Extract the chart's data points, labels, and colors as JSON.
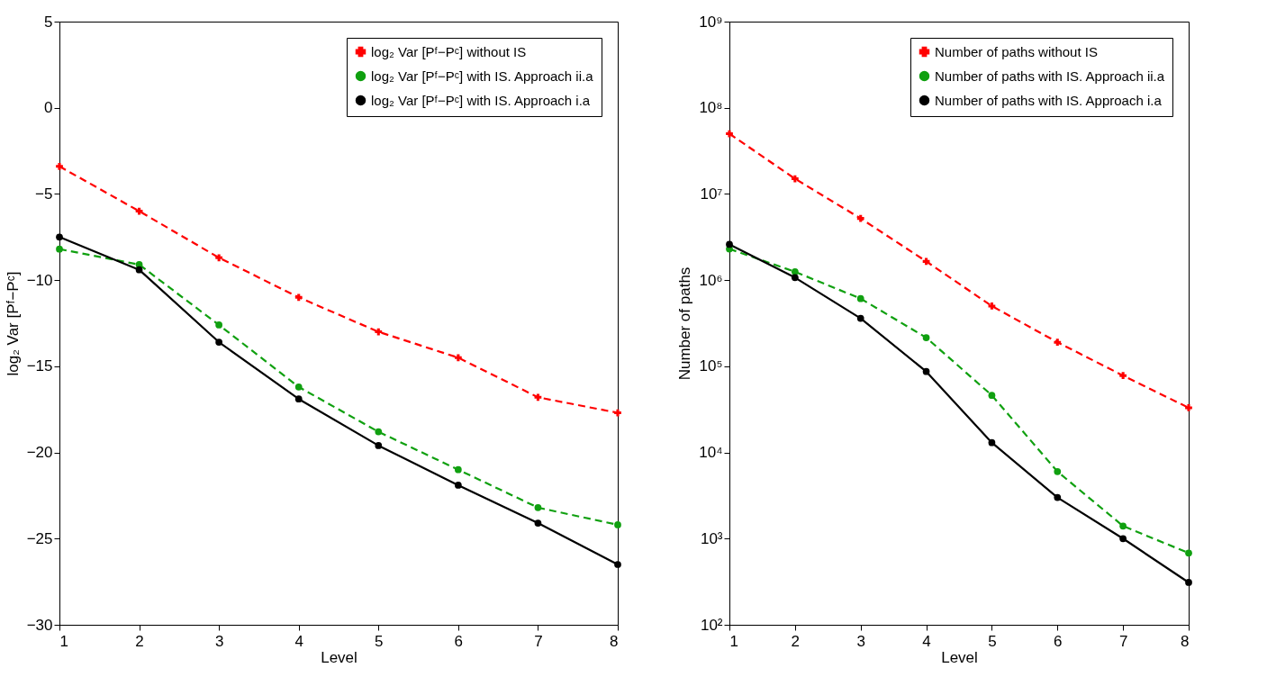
{
  "chart_data": [
    {
      "type": "line",
      "xlabel": "Level",
      "ylabel": "log₂ Var [Pᶠ−Pᶜ]",
      "x": [
        1,
        2,
        3,
        4,
        5,
        6,
        7,
        8
      ],
      "xlim": [
        1,
        8
      ],
      "xticks": [
        1,
        2,
        3,
        4,
        5,
        6,
        7,
        8
      ],
      "ylim": [
        -30,
        5
      ],
      "yticks": [
        -30,
        -25,
        -20,
        -15,
        -10,
        -5,
        0,
        5
      ],
      "legend": "top right",
      "series": [
        {
          "name": "log₂ Var [Pᶠ−Pᶜ] without IS",
          "color": "#ff0000",
          "marker": "cross",
          "line_style": "dashed",
          "values": [
            -3.4,
            -6.0,
            -8.7,
            -11.0,
            -13.0,
            -14.5,
            -16.8,
            -17.7
          ]
        },
        {
          "name": "log₂ Var [Pᶠ−Pᶜ] with IS. Approach ii.a",
          "color": "#10a010",
          "marker": "circle",
          "line_style": "dashed",
          "values": [
            -8.2,
            -9.1,
            -12.6,
            -16.2,
            -18.8,
            -21.0,
            -23.2,
            -24.2
          ]
        },
        {
          "name": "log₂ Var [Pᶠ−Pᶜ] with IS. Approach i.a",
          "color": "#000000",
          "marker": "circle",
          "line_style": "solid",
          "values": [
            -7.5,
            -9.4,
            -13.6,
            -16.9,
            -19.6,
            -21.9,
            -24.1,
            -26.5
          ]
        }
      ]
    },
    {
      "type": "line",
      "xlabel": "Level",
      "ylabel": "Number of paths",
      "log": true,
      "x": [
        1,
        2,
        3,
        4,
        5,
        6,
        7,
        8
      ],
      "xlim": [
        1,
        8
      ],
      "xticks": [
        1,
        2,
        3,
        4,
        5,
        6,
        7,
        8
      ],
      "ylim": [
        100,
        1000000000
      ],
      "yticks": [
        {
          "value": 100,
          "label": "10²"
        },
        {
          "value": 1000,
          "label": "10³"
        },
        {
          "value": 10000,
          "label": "10⁴"
        },
        {
          "value": 100000,
          "label": "10⁵"
        },
        {
          "value": 1000000,
          "label": "10⁶"
        },
        {
          "value": 10000000,
          "label": "10⁷"
        },
        {
          "value": 100000000,
          "label": "10⁸"
        },
        {
          "value": 1000000000,
          "label": "10⁹"
        }
      ],
      "legend": "top right",
      "series": [
        {
          "name": "Number of paths without IS",
          "color": "#ff0000",
          "marker": "cross",
          "line_style": "dashed",
          "values": [
            50000000,
            15000000,
            5200000,
            1650000,
            500000,
            190000,
            78000,
            33000
          ]
        },
        {
          "name": "Number of paths with IS. Approach ii.a",
          "color": "#10a010",
          "marker": "circle",
          "line_style": "dashed",
          "values": [
            2300000,
            1250000,
            610000,
            215000,
            46000,
            6000,
            1400,
            680
          ]
        },
        {
          "name": "Number of paths with IS. Approach i.a",
          "color": "#000000",
          "marker": "circle",
          "line_style": "solid",
          "values": [
            2600000,
            1070000,
            360000,
            87000,
            13000,
            3000,
            1000,
            310
          ]
        }
      ]
    }
  ]
}
